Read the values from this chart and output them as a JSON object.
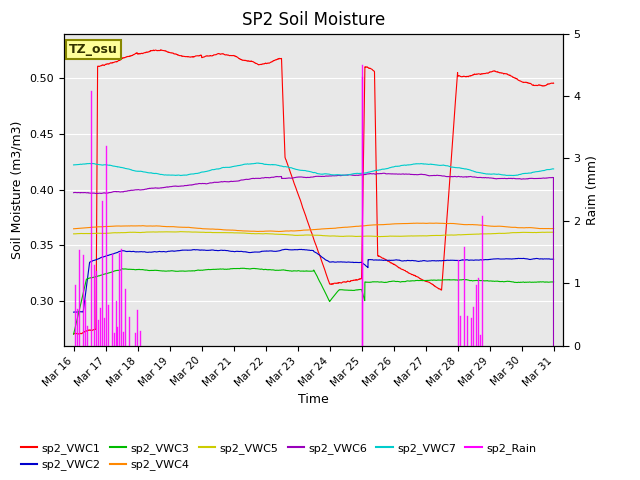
{
  "title": "SP2 Soil Moisture",
  "xlabel": "Time",
  "ylabel_left": "Soil Moisture (m3/m3)",
  "ylabel_right": "Raim (mm)",
  "ylim_left": [
    0.26,
    0.54
  ],
  "ylim_right": [
    0.0,
    5.0
  ],
  "bg_color": "#e8e8e8",
  "label_box_color": "#ffff99",
  "label_box_text": "TZ_osu",
  "xtick_labels": [
    "Mar 16",
    "Mar 17",
    "Mar 18",
    "Mar 19",
    "Mar 20",
    "Mar 21",
    "Mar 22",
    "Mar 23",
    "Mar 24",
    "Mar 25",
    "Mar 26",
    "Mar 27",
    "Mar 28",
    "Mar 29",
    "Mar 30",
    "Mar 31"
  ],
  "colors": {
    "sp2_VWC1": "#ff0000",
    "sp2_VWC2": "#0000cc",
    "sp2_VWC3": "#00bb00",
    "sp2_VWC4": "#ff8800",
    "sp2_VWC5": "#cccc00",
    "sp2_VWC6": "#9900bb",
    "sp2_VWC7": "#00cccc",
    "sp2_Rain": "#ff00ff"
  },
  "legend_order": [
    "sp2_VWC1",
    "sp2_VWC2",
    "sp2_VWC3",
    "sp2_VWC4",
    "sp2_VWC5",
    "sp2_VWC6",
    "sp2_VWC7",
    "sp2_Rain"
  ]
}
